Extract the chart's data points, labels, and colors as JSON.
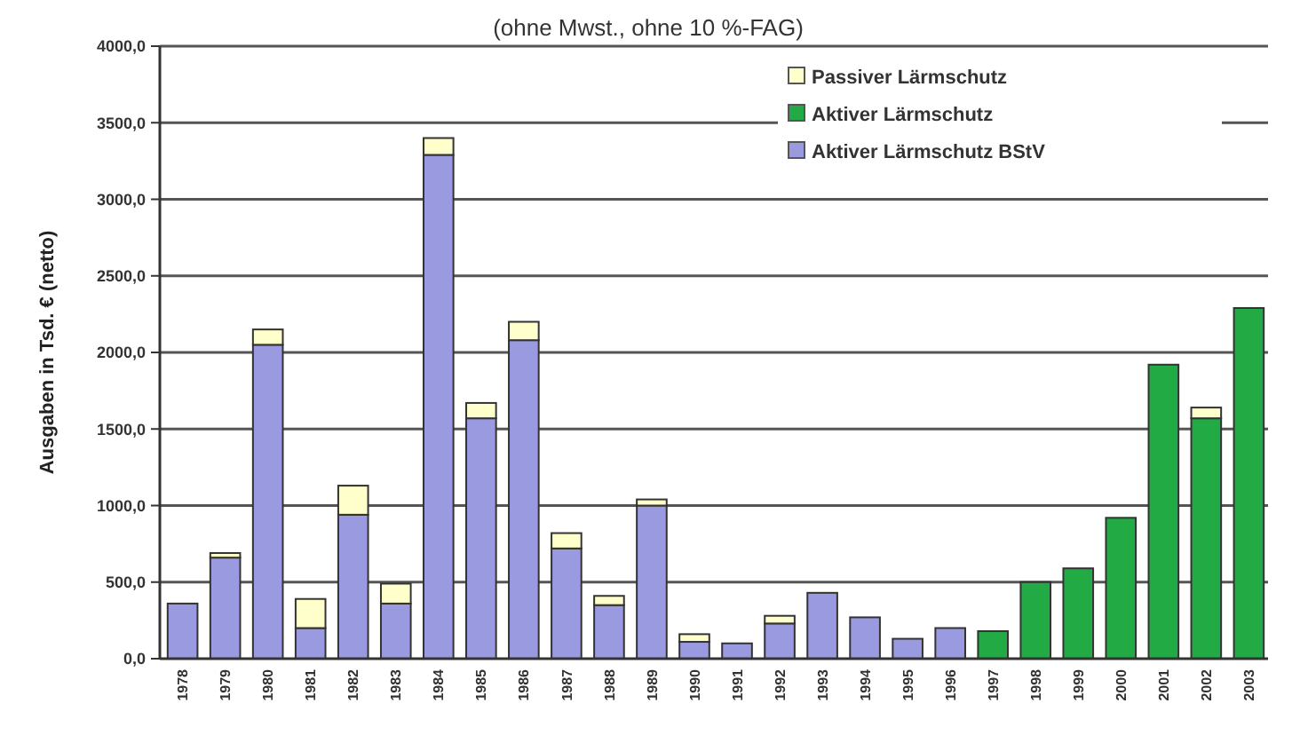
{
  "chart_data": {
    "type": "bar",
    "title": "(ohne Mwst., ohne 10 %-FAG)",
    "ylabel": "Ausgaben in Tsd. € (netto)",
    "categories": [
      "1978",
      "1979",
      "1980",
      "1981",
      "1982",
      "1983",
      "1984",
      "1985",
      "1986",
      "1987",
      "1988",
      "1989",
      "1990",
      "1991",
      "1992",
      "1993",
      "1994",
      "1995",
      "1996",
      "1997",
      "1998",
      "1999",
      "2000",
      "2001",
      "2002",
      "2003"
    ],
    "stacked": true,
    "series": [
      {
        "name": "Aktiver Lärmschutz BStV",
        "color": "#9a9ae0",
        "values": [
          360,
          660,
          2050,
          200,
          940,
          360,
          3290,
          1570,
          2080,
          720,
          350,
          1000,
          110,
          100,
          230,
          430,
          270,
          130,
          200,
          0,
          0,
          0,
          0,
          0,
          0,
          0
        ]
      },
      {
        "name": "Aktiver Lärmschutz",
        "color": "#22aa44",
        "values": [
          0,
          0,
          0,
          0,
          0,
          0,
          0,
          0,
          0,
          0,
          0,
          0,
          0,
          0,
          0,
          0,
          0,
          0,
          0,
          180,
          500,
          590,
          920,
          1920,
          1570,
          2290
        ]
      },
      {
        "name": "Passiver Lärmschutz",
        "color": "#ffffcc",
        "values": [
          0,
          30,
          100,
          190,
          190,
          130,
          110,
          100,
          120,
          100,
          60,
          40,
          50,
          0,
          50,
          0,
          0,
          0,
          0,
          0,
          0,
          0,
          0,
          0,
          70,
          0
        ]
      }
    ],
    "ylim": [
      0,
      4000
    ],
    "yticks": [
      {
        "value": 0,
        "label": "0,0"
      },
      {
        "value": 500,
        "label": "500,0"
      },
      {
        "value": 1000,
        "label": "1000,0"
      },
      {
        "value": 1500,
        "label": "1500,0"
      },
      {
        "value": 2000,
        "label": "2000,0"
      },
      {
        "value": 2500,
        "label": "2500,0"
      },
      {
        "value": 3000,
        "label": "3000,0"
      },
      {
        "value": 3500,
        "label": "3500,0"
      },
      {
        "value": 4000,
        "label": "4000,0"
      }
    ],
    "grid": "y",
    "legend": "top right"
  }
}
